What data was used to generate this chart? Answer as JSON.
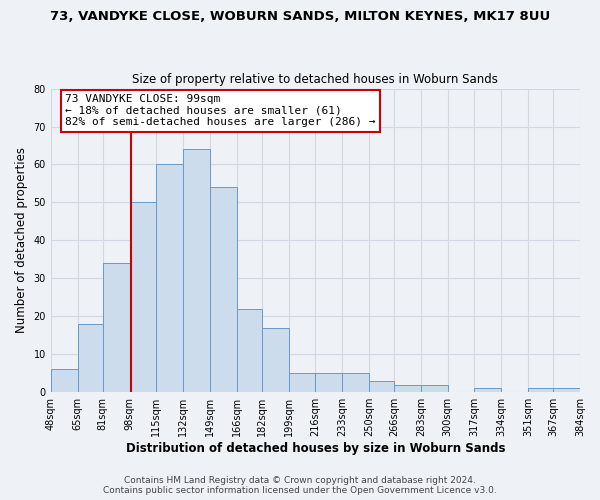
{
  "title": "73, VANDYKE CLOSE, WOBURN SANDS, MILTON KEYNES, MK17 8UU",
  "subtitle": "Size of property relative to detached houses in Woburn Sands",
  "xlabel": "Distribution of detached houses by size in Woburn Sands",
  "ylabel": "Number of detached properties",
  "bins": [
    48,
    65,
    81,
    98,
    115,
    132,
    149,
    166,
    182,
    199,
    216,
    233,
    250,
    266,
    283,
    300,
    317,
    334,
    351,
    367,
    384
  ],
  "counts": [
    6,
    18,
    34,
    50,
    60,
    64,
    54,
    22,
    17,
    5,
    5,
    5,
    3,
    2,
    2,
    0,
    1,
    0,
    1,
    1
  ],
  "bar_color": "#cddcec",
  "bar_edge_color": "#6699cc",
  "property_line_x": 99,
  "property_line_color": "#cc0000",
  "annotation_line1": "73 VANDYKE CLOSE: 99sqm",
  "annotation_line2": "← 18% of detached houses are smaller (61)",
  "annotation_line3": "82% of semi-detached houses are larger (286) →",
  "annotation_box_edge_color": "#cc0000",
  "annotation_box_facecolor": "white",
  "ylim": [
    0,
    80
  ],
  "yticks": [
    0,
    10,
    20,
    30,
    40,
    50,
    60,
    70,
    80
  ],
  "tick_labels": [
    "48sqm",
    "65sqm",
    "81sqm",
    "98sqm",
    "115sqm",
    "132sqm",
    "149sqm",
    "166sqm",
    "182sqm",
    "199sqm",
    "216sqm",
    "233sqm",
    "250sqm",
    "266sqm",
    "283sqm",
    "300sqm",
    "317sqm",
    "334sqm",
    "351sqm",
    "367sqm",
    "384sqm"
  ],
  "footer_line1": "Contains HM Land Registry data © Crown copyright and database right 2024.",
  "footer_line2": "Contains public sector information licensed under the Open Government Licence v3.0.",
  "grid_color": "#d0d8e4",
  "background_color": "#eef2f7",
  "title_fontsize": 9.5,
  "subtitle_fontsize": 8.5,
  "axis_label_fontsize": 8.5,
  "tick_fontsize": 7,
  "annotation_fontsize": 8,
  "footer_fontsize": 6.5
}
